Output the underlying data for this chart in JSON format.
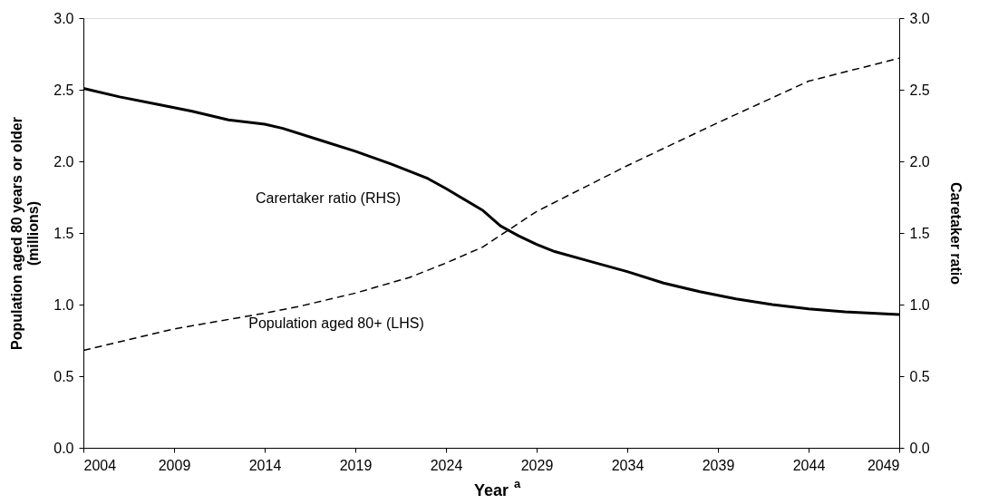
{
  "chart_data": {
    "type": "line",
    "xlabel": "Year$^{a}$",
    "ylabel": "Population aged 80 years or older\n(millions)",
    "y2label": "Caretaker ratio",
    "xlim": [
      2004,
      2049
    ],
    "xticks": [
      2004,
      2009,
      2014,
      2019,
      2024,
      2029,
      2034,
      2039,
      2044,
      2049
    ],
    "ylim": [
      0,
      3
    ],
    "yticks": [
      {
        "value": 0,
        "label": "0.0"
      },
      {
        "value": 0.5,
        "label": "0.5"
      },
      {
        "value": 1,
        "label": "1.0"
      },
      {
        "value": 1.5,
        "label": "1.5"
      },
      {
        "value": 2,
        "label": "2.0"
      },
      {
        "value": 2.5,
        "label": "2.5"
      },
      {
        "value": 3,
        "label": "3.0"
      }
    ],
    "y2lim": [
      0,
      3
    ],
    "y2ticks": [
      {
        "value": 0,
        "label": "0.0"
      },
      {
        "value": 0.5,
        "label": "0.5"
      },
      {
        "value": 1,
        "label": "1.0"
      },
      {
        "value": 1.5,
        "label": "1.5"
      },
      {
        "value": 2,
        "label": "2.0"
      },
      {
        "value": 2.5,
        "label": "2.5"
      },
      {
        "value": 3,
        "label": "3.0"
      }
    ],
    "grid": false,
    "marker": "none",
    "series": [
      {
        "color": "#000000",
        "line_style": "dashed",
        "x": [
          2004,
          2009,
          2014,
          2016,
          2019,
          2022,
          2024,
          2026,
          2029,
          2034,
          2039,
          2044,
          2049
        ],
        "values": [
          0.68,
          0.83,
          0.94,
          0.99,
          1.08,
          1.19,
          1.29,
          1.4,
          1.65,
          1.97,
          2.27,
          2.56,
          2.72
        ]
      },
      {
        "color": "#000000",
        "line_style": "solid",
        "axis": "y2",
        "x": [
          2004,
          2006,
          2008,
          2010,
          2012,
          2014,
          2015,
          2017,
          2019,
          2021,
          2023,
          2024,
          2026,
          2027,
          2028,
          2029,
          2030,
          2032,
          2034,
          2036,
          2038,
          2040,
          2042,
          2044,
          2046,
          2049
        ],
        "values": [
          2.51,
          2.45,
          2.4,
          2.35,
          2.29,
          2.26,
          2.23,
          2.15,
          2.07,
          1.98,
          1.88,
          1.81,
          1.66,
          1.55,
          1.48,
          1.42,
          1.37,
          1.3,
          1.23,
          1.15,
          1.09,
          1.04,
          1.0,
          0.97,
          0.95,
          0.93
        ]
      }
    ],
    "annotations": [
      "Carertaker ratio (RHS)",
      "Population aged 80+ (LHS)"
    ]
  }
}
